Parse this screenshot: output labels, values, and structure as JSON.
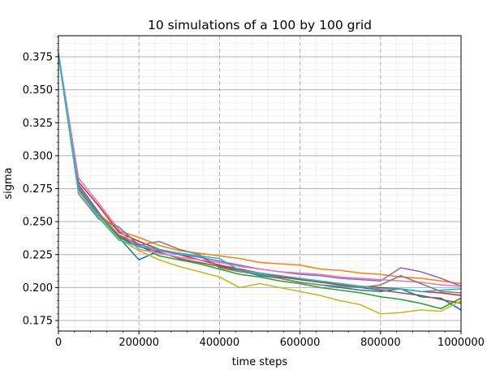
{
  "chart_data": {
    "type": "line",
    "title": "10 simulations of a 100 by 100 grid",
    "xlabel": "time steps",
    "ylabel": "sigma",
    "xlim": [
      0,
      1000000
    ],
    "ylim": [
      0.167,
      0.391
    ],
    "x_ticks": [
      0,
      200000,
      400000,
      600000,
      800000,
      1000000
    ],
    "x_tick_labels": [
      "0",
      "200000",
      "400000",
      "600000",
      "800000",
      "1000000"
    ],
    "y_ticks": [
      0.175,
      0.2,
      0.225,
      0.25,
      0.275,
      0.3,
      0.325,
      0.35,
      0.375
    ],
    "y_tick_labels": [
      "0.175",
      "0.200",
      "0.225",
      "0.250",
      "0.275",
      "0.300",
      "0.325",
      "0.350",
      "0.375"
    ],
    "grid": true,
    "legend": "none",
    "x": [
      0,
      50000,
      100000,
      150000,
      200000,
      250000,
      300000,
      350000,
      400000,
      450000,
      500000,
      550000,
      600000,
      650000,
      700000,
      750000,
      800000,
      850000,
      900000,
      950000,
      1000000
    ],
    "series": [
      {
        "color": "#1f77b4",
        "values": [
          0.376,
          0.278,
          0.257,
          0.238,
          0.221,
          0.228,
          0.226,
          0.224,
          0.216,
          0.213,
          0.209,
          0.207,
          0.204,
          0.202,
          0.2,
          0.198,
          0.197,
          0.199,
          0.193,
          0.192,
          0.183
        ]
      },
      {
        "color": "#ff7f0e",
        "values": [
          0.378,
          0.276,
          0.256,
          0.243,
          0.238,
          0.232,
          0.228,
          0.226,
          0.224,
          0.222,
          0.219,
          0.218,
          0.217,
          0.214,
          0.213,
          0.211,
          0.21,
          0.208,
          0.207,
          0.205,
          0.203
        ]
      },
      {
        "color": "#2ca02c",
        "values": [
          0.377,
          0.274,
          0.255,
          0.239,
          0.232,
          0.224,
          0.221,
          0.218,
          0.214,
          0.21,
          0.208,
          0.205,
          0.203,
          0.2,
          0.198,
          0.196,
          0.193,
          0.191,
          0.188,
          0.184,
          0.192
        ]
      },
      {
        "color": "#d62728",
        "values": [
          0.377,
          0.28,
          0.262,
          0.242,
          0.235,
          0.229,
          0.225,
          0.221,
          0.217,
          0.214,
          0.211,
          0.208,
          0.206,
          0.204,
          0.203,
          0.201,
          0.2,
          0.199,
          0.197,
          0.196,
          0.194
        ]
      },
      {
        "color": "#9467bd",
        "values": [
          0.378,
          0.277,
          0.256,
          0.24,
          0.233,
          0.228,
          0.225,
          0.223,
          0.22,
          0.217,
          0.214,
          0.212,
          0.21,
          0.209,
          0.207,
          0.206,
          0.205,
          0.215,
          0.212,
          0.207,
          0.201
        ]
      },
      {
        "color": "#8c564b",
        "values": [
          0.376,
          0.275,
          0.253,
          0.238,
          0.231,
          0.227,
          0.222,
          0.219,
          0.216,
          0.213,
          0.211,
          0.209,
          0.206,
          0.204,
          0.202,
          0.2,
          0.198,
          0.196,
          0.194,
          0.191,
          0.188
        ]
      },
      {
        "color": "#e377c2",
        "values": [
          0.378,
          0.283,
          0.264,
          0.244,
          0.229,
          0.226,
          0.223,
          0.221,
          0.219,
          0.216,
          0.214,
          0.212,
          0.211,
          0.21,
          0.208,
          0.207,
          0.206,
          0.205,
          0.204,
          0.202,
          0.201
        ]
      },
      {
        "color": "#7f7f7f",
        "values": [
          0.376,
          0.271,
          0.252,
          0.246,
          0.232,
          0.235,
          0.229,
          0.225,
          0.215,
          0.212,
          0.21,
          0.207,
          0.204,
          0.202,
          0.201,
          0.2,
          0.202,
          0.209,
          0.203,
          0.197,
          0.196
        ]
      },
      {
        "color": "#bcbd22",
        "values": [
          0.377,
          0.273,
          0.254,
          0.237,
          0.228,
          0.221,
          0.216,
          0.212,
          0.208,
          0.2,
          0.203,
          0.2,
          0.197,
          0.194,
          0.19,
          0.187,
          0.18,
          0.181,
          0.183,
          0.182,
          0.19
        ]
      },
      {
        "color": "#17becf",
        "values": [
          0.377,
          0.274,
          0.253,
          0.236,
          0.231,
          0.229,
          0.226,
          0.224,
          0.222,
          0.213,
          0.211,
          0.209,
          0.207,
          0.205,
          0.203,
          0.201,
          0.199,
          0.199,
          0.197,
          0.198,
          0.199
        ]
      }
    ]
  }
}
